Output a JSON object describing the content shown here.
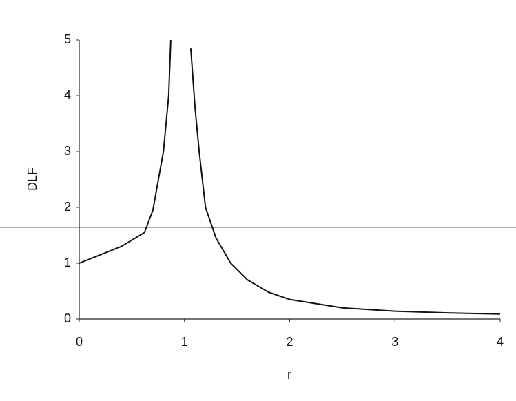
{
  "chart_data": {
    "type": "line",
    "x_label": "r",
    "y_label": "DLF",
    "x": [
      0,
      0.2,
      0.4,
      0.62,
      0.7,
      0.8,
      0.85,
      0.87,
      1.0,
      1.06,
      1.1,
      1.14,
      1.2,
      1.3,
      1.44,
      1.6,
      1.8,
      2,
      2.5,
      3,
      3.5,
      4
    ],
    "series": [
      {
        "color": "#111111",
        "values": [
          1.0,
          1.15,
          1.3,
          1.55,
          1.95,
          3.0,
          4.0,
          5.0,
          null,
          4.85,
          3.8,
          3.0,
          2.0,
          1.45,
          1.0,
          0.7,
          0.48,
          0.35,
          0.2,
          0.14,
          0.11,
          0.09
        ]
      }
    ],
    "xlim": [
      0,
      4
    ],
    "xticks": [
      0,
      1,
      2,
      3,
      4
    ],
    "ylim": [
      0,
      5
    ],
    "yticks": [
      0,
      1,
      2,
      3,
      4,
      5
    ],
    "grid": false
  }
}
